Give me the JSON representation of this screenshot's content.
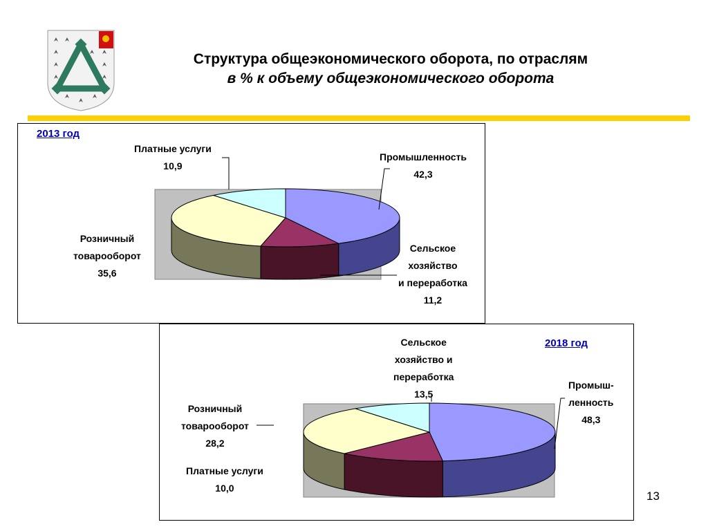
{
  "header": {
    "title": "Структура общеэкономического оборота, по отраслям",
    "subtitle": "в % к объему общеэкономического оборота"
  },
  "page_number": "13",
  "colors": {
    "accent_rule": "#ffd000",
    "industry": "#9999ff",
    "agriculture": "#993366",
    "retail": "#ffffcc",
    "services": "#ccffff",
    "plot_background": "#c0c0c0"
  },
  "chart_data": [
    {
      "type": "pie",
      "title": "2013 год",
      "categories": [
        "Промышленность",
        "Сельское хозяйство и переработка",
        "Розничный товарооборот",
        "Платные услуги"
      ],
      "values": [
        42.3,
        11.2,
        35.6,
        10.9
      ],
      "value_labels": [
        "42,3",
        "11,2",
        "35,6",
        "10,9"
      ],
      "label_lines": [
        [
          "Промышленность",
          "42,3"
        ],
        [
          "Сельское",
          "хозяйство",
          "и переработка",
          "11,2"
        ],
        [
          "Розничный",
          "товарооборот",
          "35,6"
        ],
        [
          "Платные услуги",
          "10,9"
        ]
      ]
    },
    {
      "type": "pie",
      "title": "2018 год",
      "categories": [
        "Промышленность",
        "Сельское хозяйство и переработка",
        "Розничный товарооборот",
        "Платные услуги"
      ],
      "values": [
        48.3,
        13.5,
        28.2,
        10.0
      ],
      "value_labels": [
        "48,3",
        "13,5",
        "28,2",
        "10,0"
      ],
      "label_lines": [
        [
          "Промыш-",
          "ленность",
          "48,3"
        ],
        [
          "Сельское",
          "хозяйство и",
          "переработка",
          "13,5"
        ],
        [
          "Розничный",
          "товарооборот",
          "28,2"
        ],
        [
          "Платные услуги",
          "10,0"
        ]
      ]
    }
  ]
}
